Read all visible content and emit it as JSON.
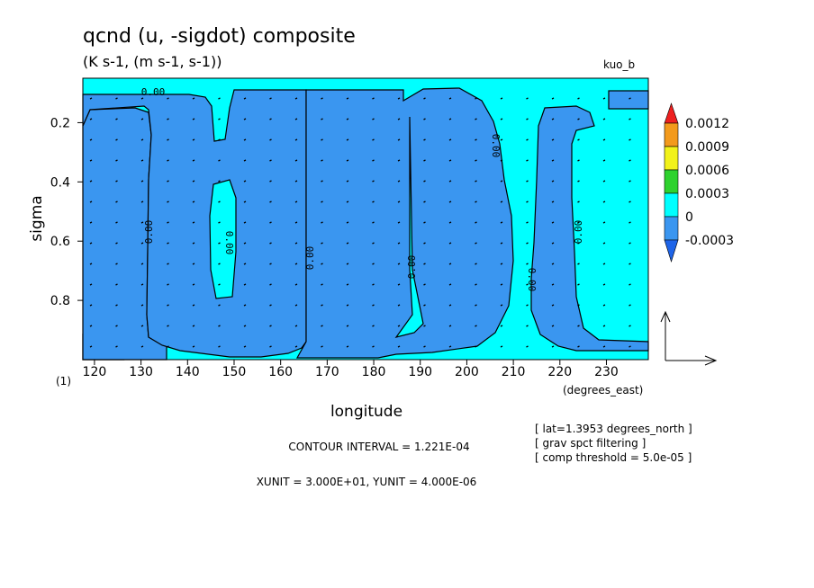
{
  "chart_data": {
    "type": "heatmap",
    "title": "qcnd (u, -sigdot) composite",
    "subtitle": "(K s-1, (m s-1, s-1))",
    "run_label": "kuo_b",
    "xlabel": "longitude",
    "xunit_label": "(degrees_east)",
    "ylabel": "sigma",
    "frame_label": "(1)",
    "xlim": [
      117.5,
      239
    ],
    "ylim": [
      1.0,
      0.05
    ],
    "x_ticks": [
      120,
      130,
      140,
      150,
      160,
      170,
      180,
      190,
      200,
      210,
      220,
      230
    ],
    "y_ticks": [
      0.2,
      0.4,
      0.6,
      0.8
    ],
    "contour_labels": [
      "0.00",
      "0.00",
      "0.00",
      "0.00",
      "0.00",
      "0.00",
      "0.00",
      "0.00",
      "0.00"
    ],
    "colorbar": {
      "levels": [
        "0.0012",
        "0.0009",
        "0.0006",
        "0.0003",
        "0",
        "-0.0003"
      ],
      "colors": [
        "#ee2020",
        "#f39a1c",
        "#f2f21a",
        "#2ed22e",
        "#00ffff",
        "#3a96f0",
        "#1e64e8"
      ]
    },
    "fill_colors": {
      "background": "#00ffff",
      "negative": "#3a96f0"
    },
    "info_lines": [
      "[ lat=1.3953 degrees_north ]",
      "[ grav spct filtering ]",
      "[ comp threshold = 5.0e-05 ]"
    ],
    "contour_interval": "CONTOUR INTERVAL = 1.221E-04",
    "unit_line": "XUNIT = 3.000E+01, YUNIT = 4.000E-06",
    "vector_legend": "reference vector arrows"
  }
}
